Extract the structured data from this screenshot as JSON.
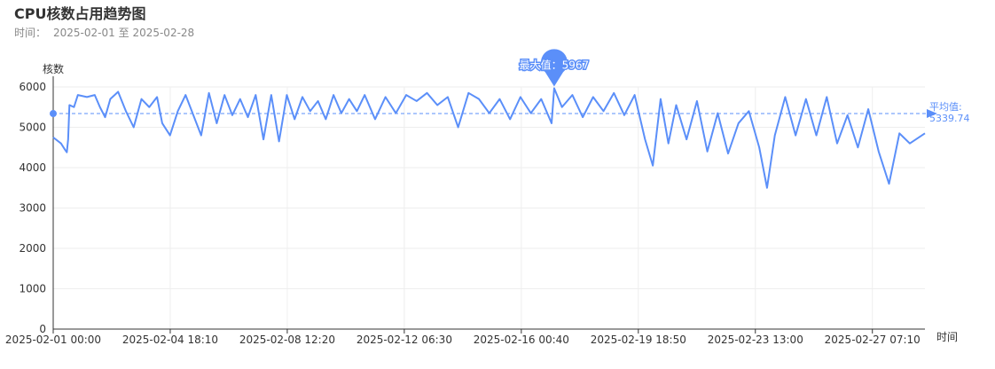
{
  "header": {
    "title": "CPU核数占用趋势图",
    "subtitle_label": "时间：",
    "start_date": "2025-02-01",
    "range_sep": "至",
    "end_date": "2025-02-28"
  },
  "chart_data": {
    "type": "line",
    "title": "CPU核数占用趋势图",
    "xlabel": "时间",
    "ylabel": "核数",
    "ylim": [
      0,
      6000
    ],
    "yticks": [
      0,
      1000,
      2000,
      3000,
      4000,
      5000,
      6000
    ],
    "xlim": [
      "2025-02-01 00:00",
      "2025-02-28 23:40"
    ],
    "xticks": [
      "2025-02-01 00:00",
      "2025-02-04 18:10",
      "2025-02-08 12:20",
      "2025-02-12 06:30",
      "2025-02-16 00:40",
      "2025-02-19 18:50",
      "2025-02-23 13:00",
      "2025-02-27 07:10"
    ],
    "grid": true,
    "color": "#5b8ff9",
    "max_marker": {
      "label": "最大值",
      "value": 5967,
      "x": "2025-02-17 02:00"
    },
    "average_line": {
      "label": "平均值",
      "value": 5339.74
    },
    "series": [
      {
        "points": [
          [
            "2025-02-01 00:00",
            4750
          ],
          [
            "2025-02-01 06:00",
            4600
          ],
          [
            "2025-02-01 09:00",
            4450
          ],
          [
            "2025-02-01 10:30",
            4380
          ],
          [
            "2025-02-01 11:30",
            4700
          ],
          [
            "2025-02-01 12:30",
            5550
          ],
          [
            "2025-02-01 16:00",
            5500
          ],
          [
            "2025-02-01 19:00",
            5800
          ],
          [
            "2025-02-02 02:00",
            5750
          ],
          [
            "2025-02-02 08:00",
            5800
          ],
          [
            "2025-02-02 12:00",
            5500
          ],
          [
            "2025-02-02 16:00",
            5250
          ],
          [
            "2025-02-02 20:00",
            5700
          ],
          [
            "2025-02-03 02:00",
            5880
          ],
          [
            "2025-02-03 08:00",
            5400
          ],
          [
            "2025-02-03 14:00",
            5000
          ],
          [
            "2025-02-03 20:00",
            5700
          ],
          [
            "2025-02-04 02:00",
            5500
          ],
          [
            "2025-02-04 08:00",
            5750
          ],
          [
            "2025-02-04 12:00",
            5100
          ],
          [
            "2025-02-04 18:00",
            4800
          ],
          [
            "2025-02-05 00:00",
            5400
          ],
          [
            "2025-02-05 06:00",
            5800
          ],
          [
            "2025-02-05 12:00",
            5300
          ],
          [
            "2025-02-05 18:00",
            4800
          ],
          [
            "2025-02-06 00:00",
            5850
          ],
          [
            "2025-02-06 06:00",
            5100
          ],
          [
            "2025-02-06 12:00",
            5800
          ],
          [
            "2025-02-06 18:00",
            5300
          ],
          [
            "2025-02-07 00:00",
            5700
          ],
          [
            "2025-02-07 06:00",
            5250
          ],
          [
            "2025-02-07 12:00",
            5800
          ],
          [
            "2025-02-07 18:00",
            4700
          ],
          [
            "2025-02-08 00:00",
            5800
          ],
          [
            "2025-02-08 06:00",
            4650
          ],
          [
            "2025-02-08 12:00",
            5800
          ],
          [
            "2025-02-08 18:00",
            5200
          ],
          [
            "2025-02-09 00:00",
            5750
          ],
          [
            "2025-02-09 06:00",
            5400
          ],
          [
            "2025-02-09 12:00",
            5650
          ],
          [
            "2025-02-09 18:00",
            5200
          ],
          [
            "2025-02-10 00:00",
            5800
          ],
          [
            "2025-02-10 06:00",
            5350
          ],
          [
            "2025-02-10 12:00",
            5700
          ],
          [
            "2025-02-10 18:00",
            5400
          ],
          [
            "2025-02-11 00:00",
            5800
          ],
          [
            "2025-02-11 08:00",
            5200
          ],
          [
            "2025-02-11 16:00",
            5750
          ],
          [
            "2025-02-12 00:00",
            5350
          ],
          [
            "2025-02-12 08:00",
            5800
          ],
          [
            "2025-02-12 16:00",
            5650
          ],
          [
            "2025-02-13 00:00",
            5850
          ],
          [
            "2025-02-13 08:00",
            5550
          ],
          [
            "2025-02-13 16:00",
            5750
          ],
          [
            "2025-02-14 00:00",
            5000
          ],
          [
            "2025-02-14 08:00",
            5850
          ],
          [
            "2025-02-14 16:00",
            5700
          ],
          [
            "2025-02-15 00:00",
            5350
          ],
          [
            "2025-02-15 08:00",
            5700
          ],
          [
            "2025-02-15 16:00",
            5200
          ],
          [
            "2025-02-16 00:00",
            5750
          ],
          [
            "2025-02-16 08:00",
            5350
          ],
          [
            "2025-02-16 16:00",
            5700
          ],
          [
            "2025-02-17 00:00",
            5100
          ],
          [
            "2025-02-17 02:00",
            5967
          ],
          [
            "2025-02-17 08:00",
            5500
          ],
          [
            "2025-02-17 16:00",
            5800
          ],
          [
            "2025-02-18 00:00",
            5250
          ],
          [
            "2025-02-18 08:00",
            5750
          ],
          [
            "2025-02-18 16:00",
            5400
          ],
          [
            "2025-02-19 00:00",
            5850
          ],
          [
            "2025-02-19 08:00",
            5300
          ],
          [
            "2025-02-19 16:00",
            5800
          ],
          [
            "2025-02-20 00:00",
            4700
          ],
          [
            "2025-02-20 06:00",
            4050
          ],
          [
            "2025-02-20 12:00",
            5700
          ],
          [
            "2025-02-20 18:00",
            4600
          ],
          [
            "2025-02-21 00:00",
            5550
          ],
          [
            "2025-02-21 08:00",
            4700
          ],
          [
            "2025-02-21 16:00",
            5650
          ],
          [
            "2025-02-22 00:00",
            4400
          ],
          [
            "2025-02-22 08:00",
            5350
          ],
          [
            "2025-02-22 16:00",
            4350
          ],
          [
            "2025-02-23 00:00",
            5100
          ],
          [
            "2025-02-23 08:00",
            5400
          ],
          [
            "2025-02-23 16:00",
            4500
          ],
          [
            "2025-02-23 22:00",
            3500
          ],
          [
            "2025-02-24 04:00",
            4800
          ],
          [
            "2025-02-24 12:00",
            5750
          ],
          [
            "2025-02-24 20:00",
            4800
          ],
          [
            "2025-02-25 04:00",
            5700
          ],
          [
            "2025-02-25 12:00",
            4800
          ],
          [
            "2025-02-25 20:00",
            5750
          ],
          [
            "2025-02-26 04:00",
            4600
          ],
          [
            "2025-02-26 12:00",
            5300
          ],
          [
            "2025-02-26 20:00",
            4500
          ],
          [
            "2025-02-27 04:00",
            5450
          ],
          [
            "2025-02-27 12:00",
            4400
          ],
          [
            "2025-02-27 20:00",
            3600
          ],
          [
            "2025-02-28 04:00",
            4850
          ],
          [
            "2025-02-28 12:00",
            4600
          ],
          [
            "2025-02-28 23:40",
            4850
          ]
        ]
      }
    ]
  }
}
